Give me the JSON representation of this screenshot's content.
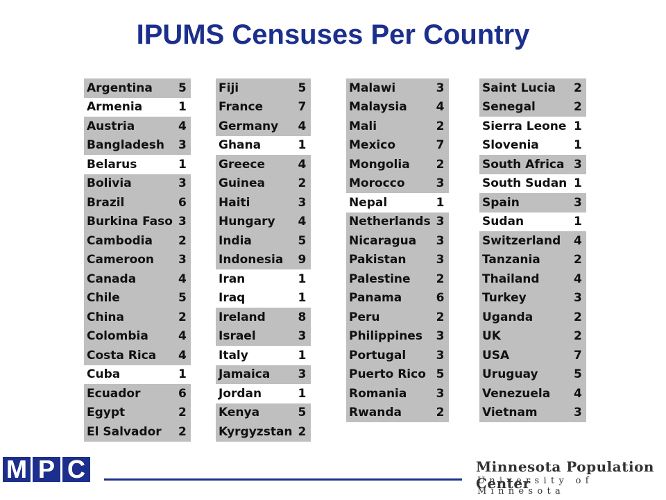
{
  "title": "IPUMS Censuses Per Country",
  "columns": [
    [
      [
        "Argentina",
        "5",
        true
      ],
      [
        "Armenia",
        "1",
        false
      ],
      [
        "Austria",
        "4",
        true
      ],
      [
        "Bangladesh",
        "3",
        true
      ],
      [
        "Belarus",
        "1",
        false
      ],
      [
        "Bolivia",
        "3",
        true
      ],
      [
        "Brazil",
        "6",
        true
      ],
      [
        "Burkina Faso",
        "3",
        true
      ],
      [
        "Cambodia",
        "2",
        true
      ],
      [
        "Cameroon",
        "3",
        true
      ],
      [
        "Canada",
        "4",
        true
      ],
      [
        "Chile",
        "5",
        true
      ],
      [
        "China",
        "2",
        true
      ],
      [
        "Colombia",
        "4",
        true
      ],
      [
        "Costa Rica",
        "4",
        true
      ],
      [
        "Cuba",
        "1",
        false
      ],
      [
        "Ecuador",
        "6",
        true
      ],
      [
        "Egypt",
        "2",
        true
      ],
      [
        "El Salvador",
        "2",
        true
      ]
    ],
    [
      [
        "Fiji",
        "5",
        true
      ],
      [
        "France",
        "7",
        true
      ],
      [
        "Germany",
        "4",
        true
      ],
      [
        "Ghana",
        "1",
        false
      ],
      [
        "Greece",
        "4",
        true
      ],
      [
        "Guinea",
        "2",
        true
      ],
      [
        "Haiti",
        "3",
        true
      ],
      [
        "Hungary",
        "4",
        true
      ],
      [
        "India",
        "5",
        true
      ],
      [
        "Indonesia",
        "9",
        true
      ],
      [
        "Iran",
        "1",
        false
      ],
      [
        "Iraq",
        "1",
        false
      ],
      [
        "Ireland",
        "8",
        true
      ],
      [
        "Israel",
        "3",
        true
      ],
      [
        "Italy",
        "1",
        false
      ],
      [
        "Jamaica",
        "3",
        true
      ],
      [
        "Jordan",
        "1",
        false
      ],
      [
        "Kenya",
        "5",
        true
      ],
      [
        "Kyrgyzstan",
        "2",
        true
      ]
    ],
    [
      [
        "Malawi",
        "3",
        true
      ],
      [
        "Malaysia",
        "4",
        true
      ],
      [
        "Mali",
        "2",
        true
      ],
      [
        "Mexico",
        "7",
        true
      ],
      [
        "Mongolia",
        "2",
        true
      ],
      [
        "Morocco",
        "3",
        true
      ],
      [
        "Nepal",
        "1",
        false
      ],
      [
        "Netherlands",
        "3",
        true
      ],
      [
        "Nicaragua",
        "3",
        true
      ],
      [
        "Pakistan",
        "3",
        true
      ],
      [
        "Palestine",
        "2",
        true
      ],
      [
        "Panama",
        "6",
        true
      ],
      [
        "Peru",
        "2",
        true
      ],
      [
        "Philippines",
        "3",
        true
      ],
      [
        "Portugal",
        "3",
        true
      ],
      [
        "Puerto Rico",
        "5",
        true
      ],
      [
        "Romania",
        "3",
        true
      ],
      [
        "Rwanda",
        "2",
        true
      ]
    ],
    [
      [
        "Saint Lucia",
        "2",
        true
      ],
      [
        "Senegal",
        "2",
        true
      ],
      [
        "Sierra Leone",
        "1",
        false
      ],
      [
        "Slovenia",
        "1",
        false
      ],
      [
        "South Africa",
        "3",
        true
      ],
      [
        "South Sudan",
        "1",
        false
      ],
      [
        "Spain",
        "3",
        true
      ],
      [
        "Sudan",
        "1",
        false
      ],
      [
        "Switzerland",
        "4",
        true
      ],
      [
        "Tanzania",
        "2",
        true
      ],
      [
        "Thailand",
        "4",
        true
      ],
      [
        "Turkey",
        "3",
        true
      ],
      [
        "Uganda",
        "2",
        true
      ],
      [
        "UK",
        "2",
        true
      ],
      [
        "USA",
        "7",
        true
      ],
      [
        "Uruguay",
        "5",
        true
      ],
      [
        "Venezuela",
        "4",
        true
      ],
      [
        "Vietnam",
        "3",
        true
      ]
    ]
  ],
  "logo": {
    "letters": [
      "M",
      "P",
      "C"
    ]
  },
  "org": {
    "name": "Minnesota Population Center",
    "university": "University of Minnesota"
  },
  "colors": {
    "accent": "#1c2f8c",
    "shaded_row": "#bfbfbf"
  }
}
